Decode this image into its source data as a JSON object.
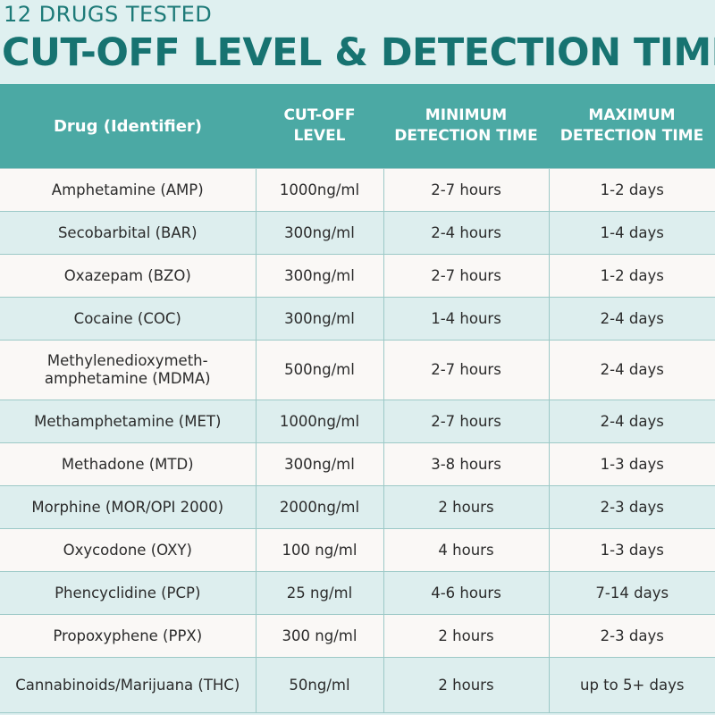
{
  "header": {
    "subtitle": "12 DRUGS TESTED",
    "title": "CUT-OFF LEVEL & DETECTION TIME"
  },
  "table": {
    "columns": [
      {
        "line1": "Drug (Identifier)",
        "line2": ""
      },
      {
        "line1": "CUT-OFF",
        "line2": "LEVEL"
      },
      {
        "line1": "MINIMUM",
        "line2": "DETECTION TIME"
      },
      {
        "line1": "MAXIMUM",
        "line2": "DETECTION TIME"
      }
    ],
    "rows": [
      {
        "drug": "Amphetamine (AMP)",
        "drug_line2": "",
        "cutoff": "1000ng/ml",
        "min": "2-7 hours",
        "max": "1-2 days"
      },
      {
        "drug": "Secobarbital (BAR)",
        "drug_line2": "",
        "cutoff": "300ng/ml",
        "min": "2-4 hours",
        "max": "1-4 days"
      },
      {
        "drug": "Oxazepam (BZO)",
        "drug_line2": "",
        "cutoff": "300ng/ml",
        "min": "2-7 hours",
        "max": "1-2 days"
      },
      {
        "drug": "Cocaine (COC)",
        "drug_line2": "",
        "cutoff": "300ng/ml",
        "min": "1-4 hours",
        "max": "2-4 days"
      },
      {
        "drug": "Methylenedioxymeth-",
        "drug_line2": "amphetamine (MDMA)",
        "cutoff": "500ng/ml",
        "min": "2-7 hours",
        "max": "2-4 days"
      },
      {
        "drug": "Methamphetamine (MET)",
        "drug_line2": "",
        "cutoff": "1000ng/ml",
        "min": "2-7 hours",
        "max": "2-4 days"
      },
      {
        "drug": "Methadone (MTD)",
        "drug_line2": "",
        "cutoff": "300ng/ml",
        "min": "3-8 hours",
        "max": "1-3 days"
      },
      {
        "drug": "Morphine (MOR/OPI 2000)",
        "drug_line2": "",
        "cutoff": "2000ng/ml",
        "min": "2 hours",
        "max": "2-3 days"
      },
      {
        "drug": "Oxycodone (OXY)",
        "drug_line2": "",
        "cutoff": "100 ng/ml",
        "min": "4 hours",
        "max": "1-3 days"
      },
      {
        "drug": "Phencyclidine (PCP)",
        "drug_line2": "",
        "cutoff": "25 ng/ml",
        "min": "4-6 hours",
        "max": "7-14 days"
      },
      {
        "drug": "Propoxyphene (PPX)",
        "drug_line2": "",
        "cutoff": "300 ng/ml",
        "min": "2 hours",
        "max": "2-3 days"
      },
      {
        "drug": "Cannabinoids/Marijuana (THC)",
        "drug_line2": "",
        "cutoff": "50ng/ml",
        "min": "2 hours",
        "max": "up to 5+ days"
      }
    ]
  },
  "colors": {
    "background": "#dff0f0",
    "title": "#177371",
    "header_bg": "#4ba9a4",
    "row_light": "#faf8f6",
    "row_tint": "#ddeeee"
  }
}
